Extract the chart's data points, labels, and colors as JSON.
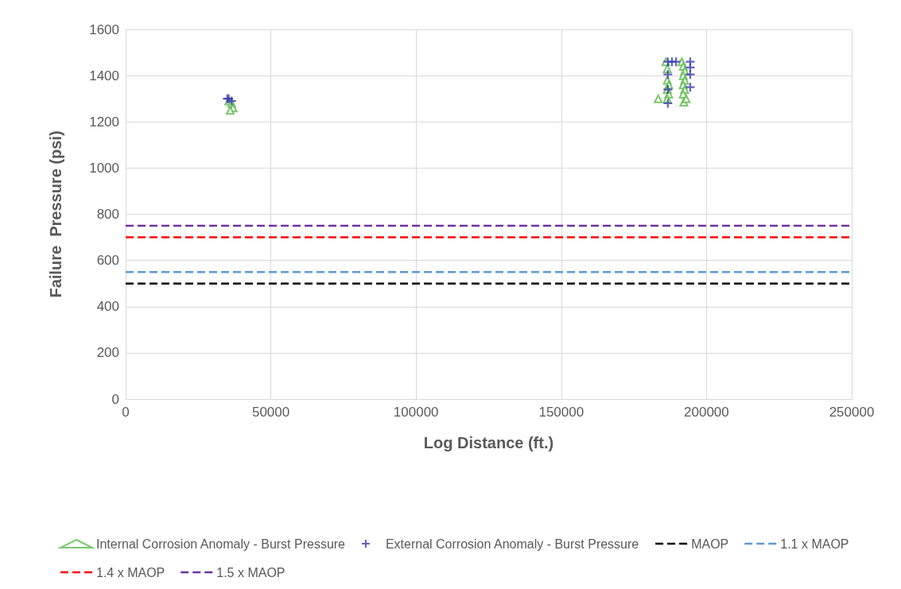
{
  "chart_data": {
    "type": "scatter",
    "xlabel": "Log Distance (ft.)",
    "ylabel": "Failure  Pressure (psi)",
    "xlim": [
      0,
      250000
    ],
    "xticks": [
      0,
      50000,
      100000,
      150000,
      200000,
      250000
    ],
    "ylim": [
      0,
      1600
    ],
    "yticks": [
      0,
      200,
      400,
      600,
      800,
      1000,
      1200,
      1400,
      1600
    ],
    "grid": true,
    "legend": "bottom",
    "series": [
      {
        "name": "Internal Corrosion Anomaly - Burst Pressure",
        "color": "#5bb94a",
        "marker": "triangle",
        "x": [
          35500,
          36500,
          37000,
          36000,
          183400,
          186000,
          186500,
          186500,
          187000,
          186500,
          187000,
          186500,
          191500,
          192000,
          192500,
          192000,
          192500,
          192000,
          192500,
          192000,
          192200,
          193000
        ],
        "values": [
          1290,
          1280,
          1260,
          1250,
          1300,
          1460,
          1430,
          1380,
          1360,
          1340,
          1320,
          1300,
          1460,
          1440,
          1420,
          1400,
          1380,
          1360,
          1340,
          1320,
          1285,
          1300
        ]
      },
      {
        "name": "External Corrosion Anomaly - Burst Pressure",
        "color": "#3a3ab0",
        "marker": "cross",
        "x": [
          35000,
          35500,
          36500,
          186700,
          188100,
          189500,
          186700,
          186700,
          186700,
          194400,
          194400,
          194400,
          194400
        ],
        "values": [
          1300,
          1300,
          1290,
          1460,
          1460,
          1460,
          1405,
          1340,
          1280,
          1460,
          1435,
          1405,
          1350
        ]
      }
    ],
    "ref_lines": [
      {
        "axis": "y",
        "value": 500,
        "label": "MAOP",
        "color": "#000000",
        "line_style": "dashed"
      },
      {
        "axis": "y",
        "value": 550,
        "label": "1.1 x MAOP",
        "color": "#5b9bd5",
        "line_style": "dashed"
      },
      {
        "axis": "y",
        "value": 700,
        "label": "1.4 x MAOP",
        "color": "#ff0000",
        "line_style": "dashed"
      },
      {
        "axis": "y",
        "value": 750,
        "label": "1.5 x MAOP",
        "color": "#7030a0",
        "line_style": "dashed"
      }
    ]
  }
}
